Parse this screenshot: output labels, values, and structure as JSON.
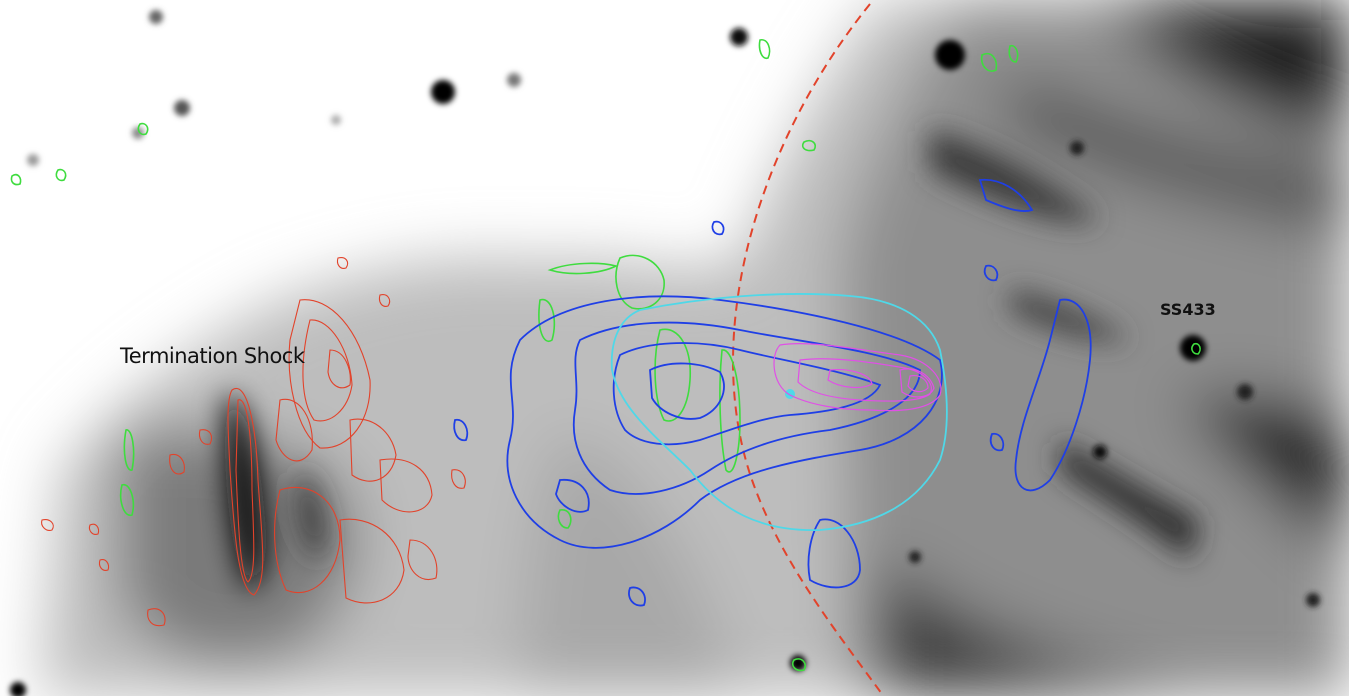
{
  "labels": {
    "termination_shock": "Termination Shock",
    "source": "SS433"
  },
  "colors": {
    "background_bright": "#ffffff",
    "emission_dark": "#111111",
    "contour_red": "#e2432b",
    "contour_green": "#3fdc3f",
    "contour_blue": "#1f3fe6",
    "contour_cyan": "#4fd8e8",
    "contour_magenta": "#e050e6",
    "boundary_dashed": "#e2432b"
  }
}
